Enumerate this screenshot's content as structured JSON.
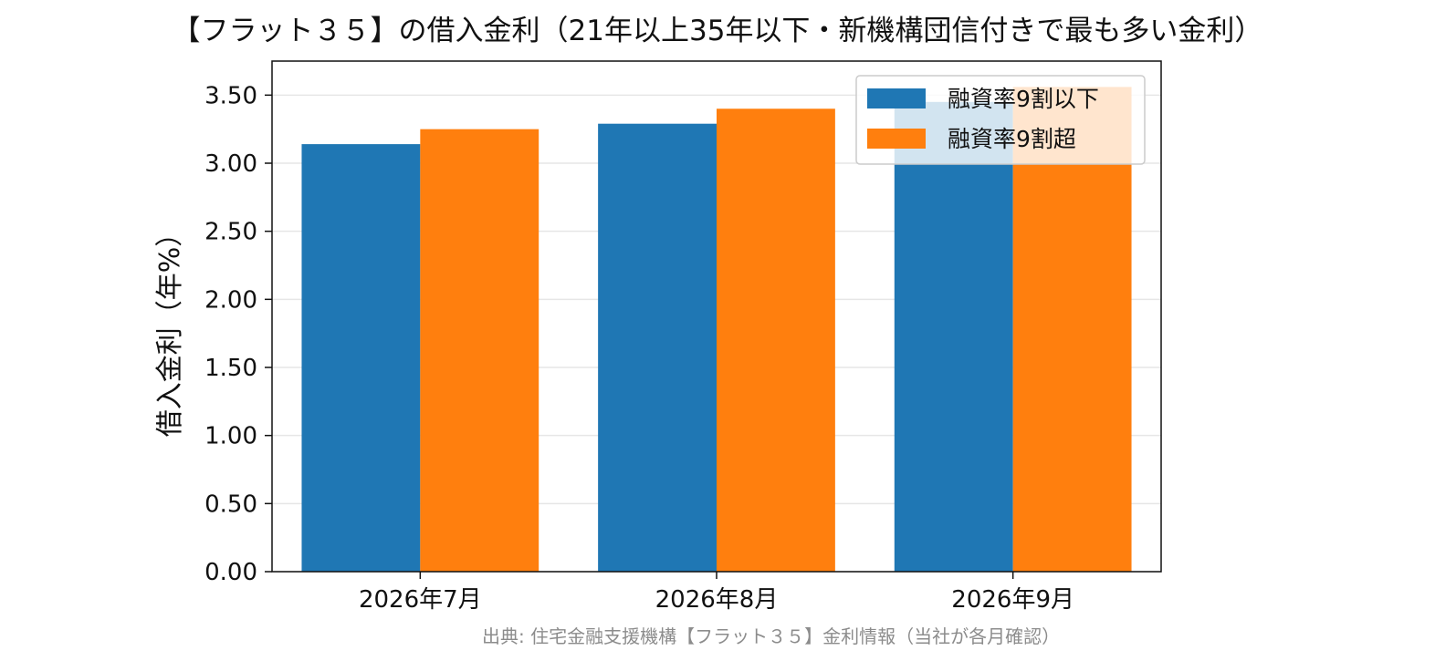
{
  "chart_data": {
    "type": "bar",
    "title": "【フラット３５】の借入金利（21年以上35年以下・新機構団信付きで最も多い金利）",
    "ylabel": "借入金利（年%）",
    "xlabel": "",
    "categories": [
      "2026年7月",
      "2026年8月",
      "2026年9月"
    ],
    "series": [
      {
        "name": "融資率9割以下",
        "values": [
          3.14,
          3.29,
          3.45
        ],
        "color": "#1f77b4"
      },
      {
        "name": "融資率9割超",
        "values": [
          3.25,
          3.4,
          3.56
        ],
        "color": "#ff7f0e"
      }
    ],
    "ylim": [
      0,
      3.75
    ],
    "yticks": [
      "0.00",
      "0.50",
      "1.00",
      "1.50",
      "2.00",
      "2.50",
      "3.00",
      "3.50"
    ],
    "grid": true,
    "legend_position": "top-right"
  },
  "source": "出典: 住宅金融支援機構【フラット３５】金利情報（当社が各月確認）"
}
